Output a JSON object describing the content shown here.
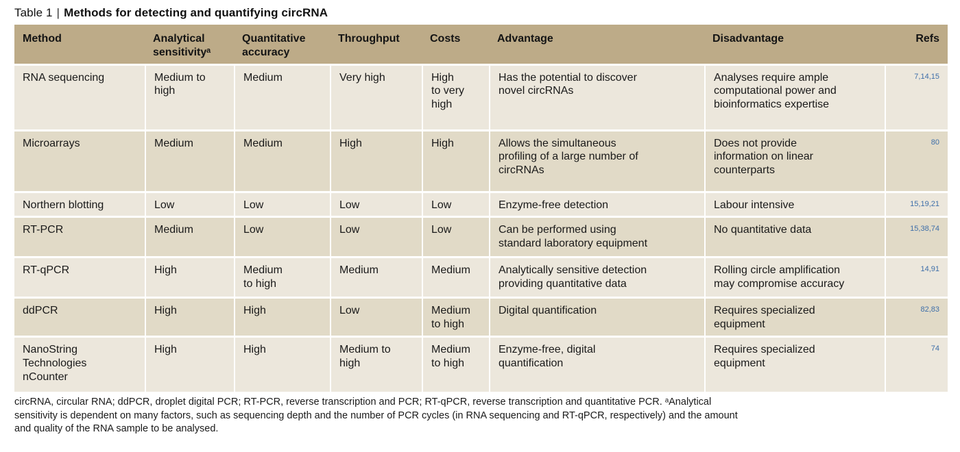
{
  "title": {
    "prefix": "Table 1",
    "separator": "|",
    "text": "Methods for detecting and quantifying circRNA"
  },
  "colors": {
    "header_bg": "#bdab88",
    "row_light": "#ece7dc",
    "row_dark": "#e1dac7",
    "text": "#1a1a1a",
    "refs_blue": "#3d6ea9",
    "page_bg": "#ffffff"
  },
  "table": {
    "columns": [
      {
        "label": "Method"
      },
      {
        "label": "Analytical\nsensitivityᵃ"
      },
      {
        "label": "Quantitative\naccuracy"
      },
      {
        "label": "Throughput"
      },
      {
        "label": "Costs"
      },
      {
        "label": "Advantage"
      },
      {
        "label": "Disadvantage"
      },
      {
        "label": "Refs"
      }
    ],
    "rows": [
      {
        "method": "RNA sequencing",
        "analytical_sensitivity": "Medium to\nhigh",
        "quantitative_accuracy": "Medium",
        "throughput": "Very high",
        "costs": "High\nto very\nhigh",
        "advantage": "Has the potential to discover\nnovel circRNAs",
        "disadvantage": "Analyses require ample\ncomputational power and\nbioinformatics expertise",
        "refs": "7,14,15"
      },
      {
        "method": "Microarrays",
        "analytical_sensitivity": "Medium",
        "quantitative_accuracy": "Medium",
        "throughput": "High",
        "costs": "High",
        "advantage": "Allows the simultaneous\nprofiling of a large number of\ncircRNAs",
        "disadvantage": "Does not provide\ninformation on linear\ncounterparts",
        "refs": "80"
      },
      {
        "method": "Northern blotting",
        "analytical_sensitivity": "Low",
        "quantitative_accuracy": "Low",
        "throughput": "Low",
        "costs": "Low",
        "advantage": "Enzyme-free detection",
        "disadvantage": "Labour intensive",
        "refs": "15,19,21"
      },
      {
        "method": "RT-PCR",
        "analytical_sensitivity": "Medium",
        "quantitative_accuracy": "Low",
        "throughput": "Low",
        "costs": "Low",
        "advantage": "Can be performed using\nstandard laboratory equipment",
        "disadvantage": "No quantitative data",
        "refs": "15,38,74"
      },
      {
        "method": "RT-qPCR",
        "analytical_sensitivity": "High",
        "quantitative_accuracy": "Medium\nto high",
        "throughput": "Medium",
        "costs": "Medium",
        "advantage": "Analytically sensitive detection\nproviding quantitative data",
        "disadvantage": "Rolling circle amplification\nmay compromise accuracy",
        "refs": "14,91"
      },
      {
        "method": "ddPCR",
        "analytical_sensitivity": "High",
        "quantitative_accuracy": "High",
        "throughput": "Low",
        "costs": "Medium\nto high",
        "advantage": "Digital quantification",
        "disadvantage": "Requires specialized\nequipment",
        "refs": "82,83"
      },
      {
        "method": "NanoString\nTechnologies\nnCounter",
        "analytical_sensitivity": "High",
        "quantitative_accuracy": "High",
        "throughput": "Medium to\nhigh",
        "costs": "Medium\nto high",
        "advantage": "Enzyme-free, digital\nquantification",
        "disadvantage": "Requires specialized\nequipment",
        "refs": "74"
      }
    ]
  },
  "footnote": "circRNA, circular RNA; ddPCR, droplet digital PCR; RT-PCR, reverse transcription and PCR; RT-qPCR, reverse transcription and quantitative PCR. ᵃAnalytical\nsensitivity is dependent on many factors, such as sequencing depth and the number of PCR cycles (in RNA sequencing and RT-qPCR, respectively) and the amount\nand quality of the RNA sample to be analysed."
}
